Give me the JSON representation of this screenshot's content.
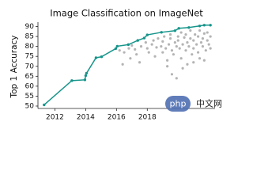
{
  "chart_data": {
    "type": "line",
    "title": "Image Classification on ImageNet",
    "y_label": "Top 1 Accuracy",
    "xlim": [
      2010.9,
      2022.4
    ],
    "xticks": [
      2012,
      2014,
      2016,
      2018
    ],
    "ylim": [
      48.8,
      92.2
    ],
    "yticks": [
      50,
      55,
      60,
      65,
      70,
      75,
      80,
      85,
      90
    ],
    "series": [
      {
        "type": "line",
        "color": "#17958b",
        "x": [
          2011.3,
          2013.1,
          2013.95,
          2014.0,
          2014.05,
          2014.67,
          2015.03,
          2015.95,
          2016.05,
          2016.77,
          2017.38,
          2017.8,
          2018.0,
          2018.92,
          2019.8,
          2020.05,
          2020.7,
          2021.4,
          2021.7,
          2022.1
        ],
        "values": [
          50.6,
          62.8,
          63.2,
          65.3,
          66.5,
          74.3,
          74.8,
          78.9,
          80.1,
          80.9,
          83.0,
          84.2,
          85.8,
          87.1,
          87.9,
          89.1,
          89.5,
          90.3,
          90.7,
          90.7
        ]
      },
      {
        "type": "scatter",
        "color": "#b4b4b4",
        "x": [
          2016.2,
          2016.5,
          2016.8,
          2017.0,
          2017.2,
          2017.3,
          2017.6,
          2017.9,
          2018.0,
          2018.1,
          2018.3,
          2018.4,
          2018.5,
          2018.6,
          2018.7,
          2018.9,
          2019.0,
          2019.0,
          2019.1,
          2019.2,
          2019.3,
          2019.4,
          2019.5,
          2019.5,
          2019.6,
          2019.7,
          2019.8,
          2019.9,
          2020.0,
          2020.0,
          2020.1,
          2020.2,
          2020.2,
          2020.3,
          2020.4,
          2020.5,
          2020.5,
          2020.6,
          2020.7,
          2020.8,
          2020.8,
          2020.9,
          2021.0,
          2021.0,
          2021.1,
          2021.2,
          2021.3,
          2021.3,
          2021.4,
          2021.5,
          2021.6,
          2021.6,
          2021.7,
          2021.8,
          2021.9,
          2021.9,
          2022.0,
          2022.1,
          2022.1,
          2019.3,
          2019.6,
          2019.9,
          2020.3,
          2020.6,
          2021.0,
          2021.4,
          2021.7,
          2016.4,
          2017.5,
          2016.9
        ],
        "values": [
          78,
          77,
          79,
          80.5,
          78.5,
          76,
          80,
          82,
          79,
          77,
          81,
          83,
          75,
          79.5,
          84,
          80,
          77,
          82.5,
          85,
          79,
          73,
          81,
          84,
          86,
          78,
          76,
          82,
          80,
          85,
          83,
          79,
          87,
          74,
          81,
          84.5,
          78,
          86,
          82,
          80,
          84,
          88,
          76,
          83,
          79,
          86,
          81,
          85,
          77,
          88,
          82,
          84,
          80,
          86.5,
          78,
          83,
          87,
          81,
          85,
          79,
          70,
          66,
          64,
          69,
          71,
          72,
          74,
          73,
          71,
          72,
          74
        ]
      }
    ]
  },
  "watermark": {
    "badge": "php",
    "text": "中文网"
  }
}
